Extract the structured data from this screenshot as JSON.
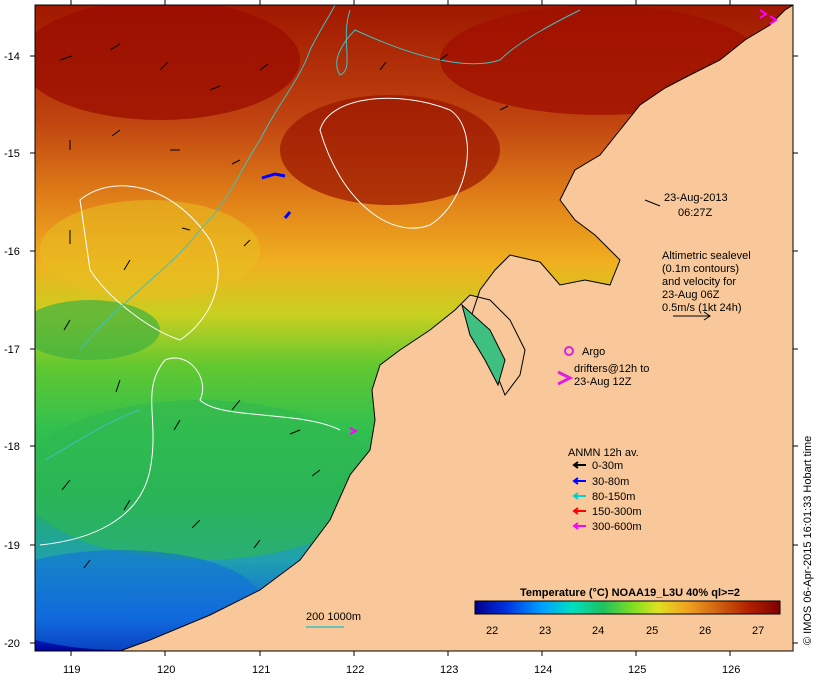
{
  "colors": {
    "land": "#f8c89a",
    "sst_scale": [
      "#00008b",
      "#0000ff",
      "#00a0ff",
      "#00e0c0",
      "#20c060",
      "#40d040",
      "#a0e020",
      "#e0d020",
      "#f0a020",
      "#d87010",
      "#c04010",
      "#a01000",
      "#800000"
    ],
    "contour": "#ffffff",
    "isobath": "#40c0c0",
    "argo": "#e020e0",
    "drifter_0_30": "#000000",
    "drifter_30_80": "#0000ff",
    "drifter_80_150": "#00d0d0",
    "drifter_150_300": "#ff0000",
    "drifter_300_600": "#ff00ff"
  },
  "axes": {
    "lat_ticks": [
      "-14",
      "-15",
      "-16",
      "-17",
      "-18",
      "-19",
      "-20"
    ],
    "lon_ticks": [
      "119",
      "120",
      "121",
      "122",
      "123",
      "124",
      "125",
      "126"
    ]
  },
  "timestamp": {
    "line1": "23-Aug-2013",
    "line2": "06:27Z"
  },
  "sealevel_note": [
    "Altimetric sealevel",
    "(0.1m contours)",
    "and velocity for",
    "23-Aug 06Z",
    "0.5m/s (1kt 24h)"
  ],
  "argo_label": "Argo",
  "drifters_label": [
    "drifters@12h to",
    "23-Aug 12Z"
  ],
  "anmn_legend": {
    "title": "ANMN 12h av.",
    "items": [
      "0-30m",
      "30-80m",
      "80-150m",
      "150-300m",
      "300-600m"
    ]
  },
  "colorbar": {
    "title": "Temperature (°C) NOAA19_L3U 40% ql>=2",
    "ticks": [
      "22",
      "23",
      "24",
      "25",
      "26",
      "27"
    ]
  },
  "isobath_label": "200  1000m",
  "credit": "© IMOS 06-Apr-2015 16:01:33 Hobart time"
}
